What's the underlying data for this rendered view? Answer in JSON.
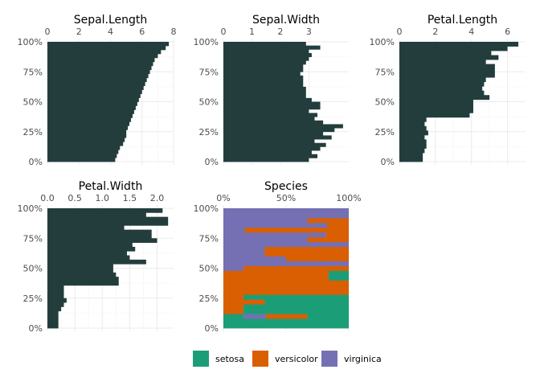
{
  "colors": {
    "bar": "#233d3d",
    "setosa": "#1b9e77",
    "versicolor": "#d95f02",
    "virginica": "#7570b3",
    "grid": "#ebebeb"
  },
  "legend": {
    "position": "bottom",
    "items": [
      {
        "label": "setosa",
        "color": "#1b9e77"
      },
      {
        "label": "versicolor",
        "color": "#d95f02"
      },
      {
        "label": "virginica",
        "color": "#7570b3"
      }
    ]
  },
  "chart_data": [
    {
      "type": "bar",
      "orientation": "horizontal",
      "title": "Sepal.Length",
      "x_axis_position": "top",
      "xlim": [
        0,
        8
      ],
      "x_ticks": [
        "0",
        "2",
        "4",
        "6",
        "8"
      ],
      "y_ticks": [
        "0%",
        "25%",
        "50%",
        "75%",
        "100%"
      ],
      "ylim": [
        0,
        100
      ],
      "values": [
        4.3,
        4.4,
        4.5,
        4.6,
        4.8,
        4.9,
        5.0,
        5.0,
        5.1,
        5.2,
        5.3,
        5.4,
        5.5,
        5.6,
        5.7,
        5.8,
        5.9,
        6.0,
        6.1,
        6.2,
        6.3,
        6.4,
        6.5,
        6.6,
        6.7,
        6.8,
        7.0,
        7.2,
        7.5,
        7.7
      ]
    },
    {
      "type": "bar",
      "orientation": "horizontal",
      "title": "Sepal.Width",
      "x_axis_position": "top",
      "xlim": [
        0,
        4.4
      ],
      "x_ticks": [
        "0",
        "1",
        "2",
        "3"
      ],
      "y_ticks": [
        "0%",
        "25%",
        "50%",
        "75%",
        "100%"
      ],
      "ylim": [
        0,
        100
      ],
      "values": [
        3.0,
        3.3,
        3.1,
        3.4,
        3.6,
        3.2,
        3.8,
        3.5,
        3.9,
        4.2,
        3.5,
        3.2,
        3.3,
        3.0,
        3.4,
        3.4,
        3.1,
        2.9,
        2.9,
        2.9,
        2.8,
        2.8,
        2.8,
        2.7,
        2.8,
        2.8,
        2.9,
        3.0,
        3.1,
        3.0,
        3.4,
        2.9
      ]
    },
    {
      "type": "bar",
      "orientation": "horizontal",
      "title": "Petal.Length",
      "x_axis_position": "top",
      "xlim": [
        0,
        7
      ],
      "x_ticks": [
        "0",
        "2",
        "4",
        "6"
      ],
      "y_ticks": [
        "0%",
        "25%",
        "50%",
        "75%",
        "100%"
      ],
      "ylim": [
        0,
        100
      ],
      "values": [
        1.3,
        1.3,
        1.4,
        1.5,
        1.5,
        1.4,
        1.6,
        1.5,
        1.4,
        1.5,
        3.9,
        4.1,
        4.1,
        4.1,
        5.0,
        4.7,
        4.6,
        4.7,
        4.8,
        5.3,
        5.3,
        5.3,
        4.8,
        5.5,
        5.1,
        6.0,
        6.6
      ]
    },
    {
      "type": "bar",
      "orientation": "horizontal",
      "title": "Petal.Width",
      "x_axis_position": "top",
      "xlim": [
        0,
        2.3
      ],
      "x_ticks": [
        "0.0",
        "0.5",
        "1.0",
        "1.5",
        "2.0"
      ],
      "y_ticks": [
        "0%",
        "25%",
        "50%",
        "75%",
        "100%"
      ],
      "ylim": [
        0,
        100
      ],
      "values": [
        0.2,
        0.2,
        0.2,
        0.2,
        0.25,
        0.3,
        0.35,
        0.3,
        0.3,
        0.3,
        1.3,
        1.3,
        1.25,
        1.2,
        1.2,
        1.8,
        1.5,
        1.45,
        1.6,
        1.55,
        2.0,
        1.9,
        1.9,
        1.4,
        2.2,
        2.2,
        1.8,
        2.1
      ]
    },
    {
      "type": "bar",
      "orientation": "horizontal",
      "stacked": "fill",
      "title": "Species",
      "x_axis_position": "top",
      "xlim": [
        0,
        100
      ],
      "x_ticks": [
        "0%",
        "50%",
        "100%"
      ],
      "y_ticks": [
        "0%",
        "25%",
        "50%",
        "75%",
        "100%"
      ],
      "ylim": [
        0,
        100
      ],
      "categories": [
        "setosa",
        "versicolor",
        "virginica"
      ],
      "rows": [
        [
          "setosa"
        ],
        [
          "setosa"
        ],
        [
          "setosa"
        ],
        [
          "versicolor"
        ],
        [
          "virginica"
        ],
        [
          "setosa"
        ],
        [
          "setosa"
        ],
        [
          "versicolor"
        ],
        [
          "versicolor"
        ],
        [
          "versicolor"
        ],
        [
          "versicolor"
        ],
        [
          "setosa"
        ],
        [
          "virginica"
        ],
        [
          "versicolor"
        ],
        [
          "versicolor"
        ],
        [
          "versicolor"
        ],
        [
          "virginica"
        ],
        [
          "virginica"
        ],
        [
          "virginica"
        ],
        [
          "virginica"
        ],
        [
          "virginica"
        ],
        [
          "virginica"
        ],
        [
          "virginica"
        ],
        [
          "virginica"
        ],
        [
          "virginica"
        ],
        [
          "virginica"
        ],
        [
          "virginica"
        ],
        [
          "virginica"
        ]
      ],
      "segments": [
        [
          {
            "c": "setosa",
            "w": 100
          }
        ],
        [
          {
            "c": "setosa",
            "w": 100
          }
        ],
        [
          {
            "c": "setosa",
            "w": 16
          },
          {
            "c": "virginica",
            "w": 18
          },
          {
            "c": "versicolor",
            "w": 33
          },
          {
            "c": "setosa",
            "w": 33
          }
        ],
        [
          {
            "c": "versicolor",
            "w": 16
          },
          {
            "c": "setosa",
            "w": 84
          }
        ],
        [
          {
            "c": "versicolor",
            "w": 16
          },
          {
            "c": "setosa",
            "w": 84
          }
        ],
        [
          {
            "c": "versicolor",
            "w": 33
          },
          {
            "c": "setosa",
            "w": 67
          }
        ],
        [
          {
            "c": "versicolor",
            "w": 16
          },
          {
            "c": "setosa",
            "w": 84
          }
        ],
        [
          {
            "c": "versicolor",
            "w": 100
          }
        ],
        [
          {
            "c": "versicolor",
            "w": 100
          }
        ],
        [
          {
            "c": "versicolor",
            "w": 100
          }
        ],
        [
          {
            "c": "versicolor",
            "w": 84
          },
          {
            "c": "setosa",
            "w": 16
          }
        ],
        [
          {
            "c": "versicolor",
            "w": 84
          },
          {
            "c": "setosa",
            "w": 16
          }
        ],
        [
          {
            "c": "virginica",
            "w": 16
          },
          {
            "c": "versicolor",
            "w": 84
          }
        ],
        [
          {
            "c": "virginica",
            "w": 100
          }
        ],
        [
          {
            "c": "virginica",
            "w": 33
          },
          {
            "c": "virginica",
            "w": 17
          },
          {
            "c": "versicolor",
            "w": 50
          }
        ],
        [
          {
            "c": "virginica",
            "w": 33
          },
          {
            "c": "versicolor",
            "w": 67
          }
        ],
        [
          {
            "c": "virginica",
            "w": 33
          },
          {
            "c": "versicolor",
            "w": 67
          }
        ],
        [
          {
            "c": "virginica",
            "w": 100
          }
        ],
        [
          {
            "c": "virginica",
            "w": 67
          },
          {
            "c": "versicolor",
            "w": 33
          }
        ],
        [
          {
            "c": "virginica",
            "w": 82
          },
          {
            "c": "versicolor",
            "w": 18
          }
        ],
        [
          {
            "c": "virginica",
            "w": 17
          },
          {
            "c": "versicolor",
            "w": 83
          }
        ],
        [
          {
            "c": "virginica",
            "w": 83
          },
          {
            "c": "versicolor",
            "w": 17
          }
        ],
        [
          {
            "c": "virginica",
            "w": 67
          },
          {
            "c": "versicolor",
            "w": 33
          }
        ],
        [
          {
            "c": "virginica",
            "w": 100
          }
        ],
        [
          {
            "c": "virginica",
            "w": 100
          }
        ]
      ]
    }
  ]
}
